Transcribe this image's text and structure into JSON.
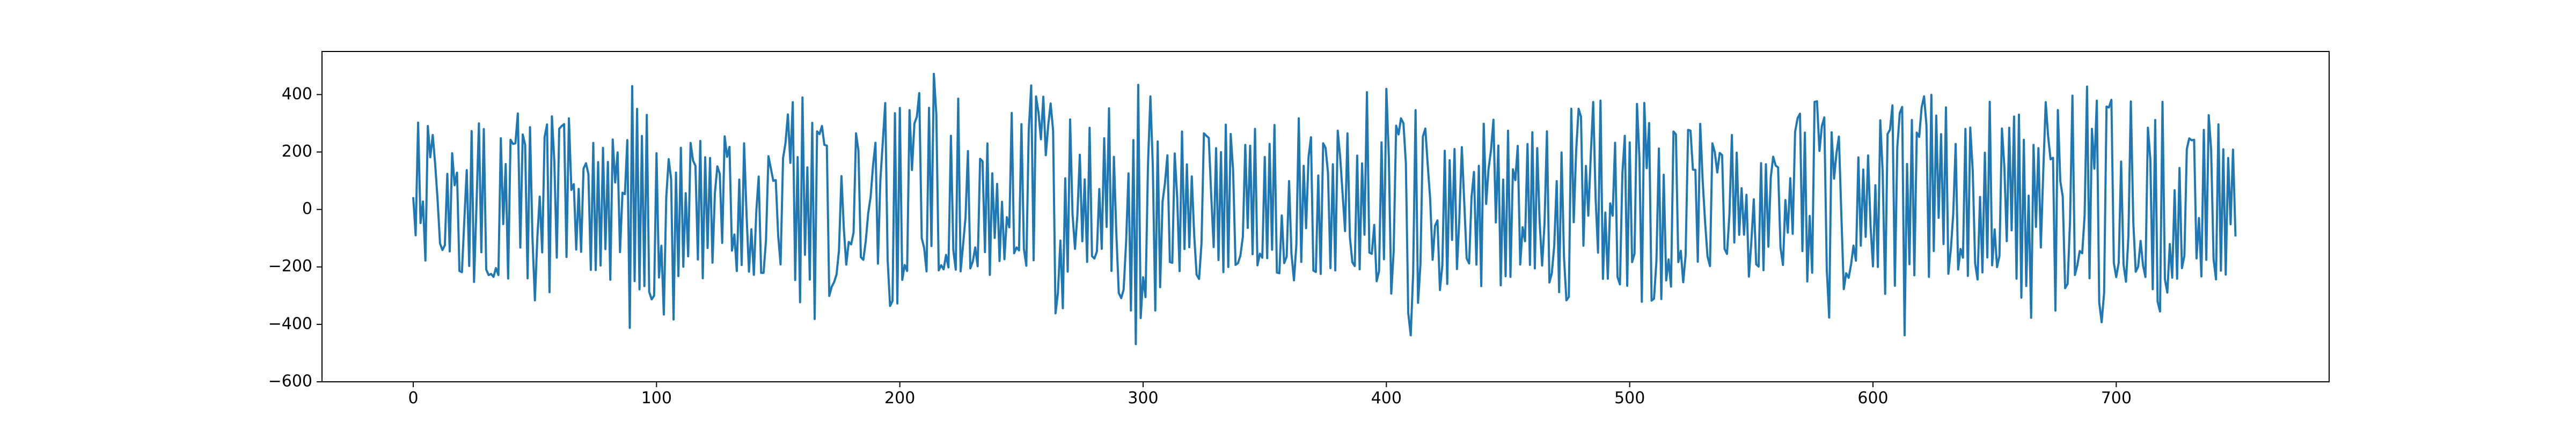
{
  "chart_data": {
    "type": "line",
    "title": "",
    "xlabel": "",
    "ylabel": "",
    "xlim": [
      -37.5,
      787.5
    ],
    "ylim": [
      -600,
      550
    ],
    "xticks": [
      0,
      100,
      200,
      300,
      400,
      500,
      600,
      700
    ],
    "yticks": [
      -600,
      -400,
      -200,
      0,
      200,
      400
    ],
    "grid": false,
    "legend": "none",
    "series": [
      {
        "color": "#1f77b4",
        "x_start": 0,
        "x_step": 1,
        "n_points": 750,
        "value_range": [
          -550,
          540
        ],
        "approx_envelope": [
          [
            0,
            -180,
            260
          ],
          [
            5,
            -210,
            390
          ],
          [
            15,
            -170,
            230
          ],
          [
            25,
            -380,
            300
          ],
          [
            35,
            -240,
            380
          ],
          [
            45,
            -350,
            340
          ],
          [
            55,
            -310,
            350
          ],
          [
            65,
            -150,
            320
          ],
          [
            75,
            -230,
            270
          ],
          [
            85,
            -260,
            380
          ],
          [
            90,
            -500,
            450
          ],
          [
            100,
            -350,
            250
          ],
          [
            105,
            -430,
            360
          ],
          [
            115,
            -270,
            230
          ],
          [
            125,
            -200,
            270
          ],
          [
            135,
            -240,
            260
          ],
          [
            145,
            -230,
            310
          ],
          [
            155,
            -190,
            370
          ],
          [
            160,
            -460,
            400
          ],
          [
            165,
            -420,
            320
          ],
          [
            175,
            -230,
            280
          ],
          [
            185,
            -180,
            270
          ],
          [
            195,
            -400,
            390
          ],
          [
            205,
            -360,
            380
          ],
          [
            215,
            -220,
            540
          ],
          [
            225,
            -220,
            370
          ],
          [
            235,
            -250,
            290
          ],
          [
            245,
            -180,
            330
          ],
          [
            255,
            -240,
            450
          ],
          [
            265,
            -380,
            340
          ],
          [
            275,
            -200,
            340
          ],
          [
            285,
            -180,
            400
          ],
          [
            300,
            -550,
            450
          ],
          [
            310,
            -190,
            290
          ],
          [
            320,
            -260,
            340
          ],
          [
            330,
            -230,
            390
          ],
          [
            340,
            -240,
            280
          ],
          [
            350,
            -190,
            290
          ],
          [
            360,
            -260,
            370
          ],
          [
            370,
            -230,
            250
          ],
          [
            380,
            -220,
            320
          ],
          [
            395,
            -240,
            490
          ],
          [
            405,
            -550,
            440
          ],
          [
            415,
            -370,
            330
          ],
          [
            425,
            -270,
            370
          ],
          [
            435,
            -200,
            300
          ],
          [
            445,
            -370,
            350
          ],
          [
            455,
            -200,
            260
          ],
          [
            465,
            -240,
            300
          ],
          [
            475,
            -330,
            450
          ],
          [
            485,
            -280,
            410
          ],
          [
            495,
            -240,
            330
          ],
          [
            505,
            -450,
            390
          ],
          [
            515,
            -290,
            280
          ],
          [
            525,
            -260,
            310
          ],
          [
            535,
            -230,
            300
          ],
          [
            545,
            -190,
            260
          ],
          [
            555,
            -300,
            270
          ],
          [
            565,
            -190,
            340
          ],
          [
            575,
            -320,
            400
          ],
          [
            585,
            -440,
            330
          ],
          [
            595,
            -170,
            260
          ],
          [
            605,
            -310,
            350
          ],
          [
            615,
            -530,
            460
          ],
          [
            625,
            -180,
            460
          ],
          [
            635,
            -260,
            320
          ],
          [
            645,
            -240,
            380
          ],
          [
            655,
            -200,
            400
          ],
          [
            665,
            -450,
            380
          ],
          [
            675,
            -380,
            400
          ],
          [
            685,
            -210,
            460
          ],
          [
            690,
            -530,
            460
          ],
          [
            700,
            -280,
            380
          ],
          [
            710,
            -210,
            540
          ],
          [
            720,
            -400,
            390
          ],
          [
            730,
            -170,
            360
          ],
          [
            740,
            -380,
            330
          ],
          [
            749,
            -120,
            230
          ]
        ]
      }
    ]
  }
}
